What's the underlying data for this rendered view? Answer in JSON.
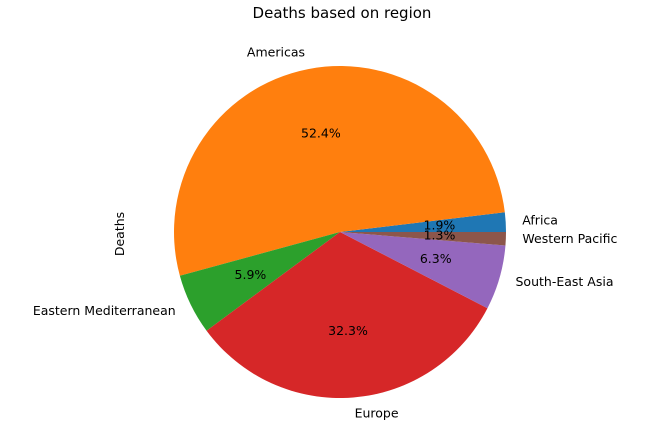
{
  "chart_data": {
    "type": "pie",
    "title": "Deaths based on region",
    "ylabel": "Deaths",
    "start_angle_deg": 0,
    "direction": "counterclockwise",
    "slices": [
      {
        "label": "Africa",
        "value": 1.9,
        "pct_label": "1.9%",
        "color": "#1f77b4"
      },
      {
        "label": "Americas",
        "value": 52.4,
        "pct_label": "52.4%",
        "color": "#ff7f0e"
      },
      {
        "label": "Eastern Mediterranean",
        "value": 5.9,
        "pct_label": "5.9%",
        "color": "#2ca02c"
      },
      {
        "label": "Europe",
        "value": 32.3,
        "pct_label": "32.3%",
        "color": "#d62728"
      },
      {
        "label": "South-East Asia",
        "value": 6.3,
        "pct_label": "6.3%",
        "color": "#9467bd"
      },
      {
        "label": "Western Pacific",
        "value": 1.3,
        "pct_label": "1.3%",
        "color": "#8c564b"
      }
    ]
  }
}
